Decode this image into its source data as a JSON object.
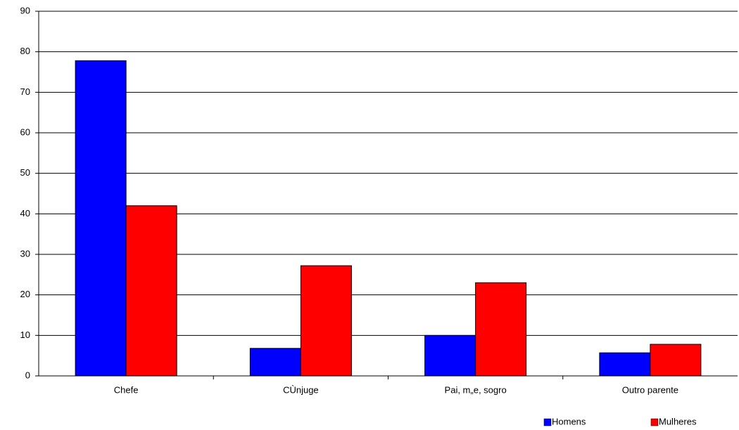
{
  "chart_data": {
    "type": "bar",
    "categories": [
      "Chefe",
      "CÙnjuge",
      "Pai, m„e, sogro",
      "Outro parente"
    ],
    "series": [
      {
        "name": "Homens",
        "color": "#0000ff",
        "values": [
          77.8,
          6.8,
          10,
          5.7
        ]
      },
      {
        "name": "Mulheres",
        "color": "#ff0000",
        "values": [
          42,
          27.2,
          23,
          7.8
        ]
      }
    ],
    "ylim": [
      0,
      90
    ],
    "yticks": [
      0,
      10,
      20,
      30,
      40,
      50,
      60,
      70,
      80,
      90
    ],
    "grid": true,
    "legend": "bottom-right"
  }
}
